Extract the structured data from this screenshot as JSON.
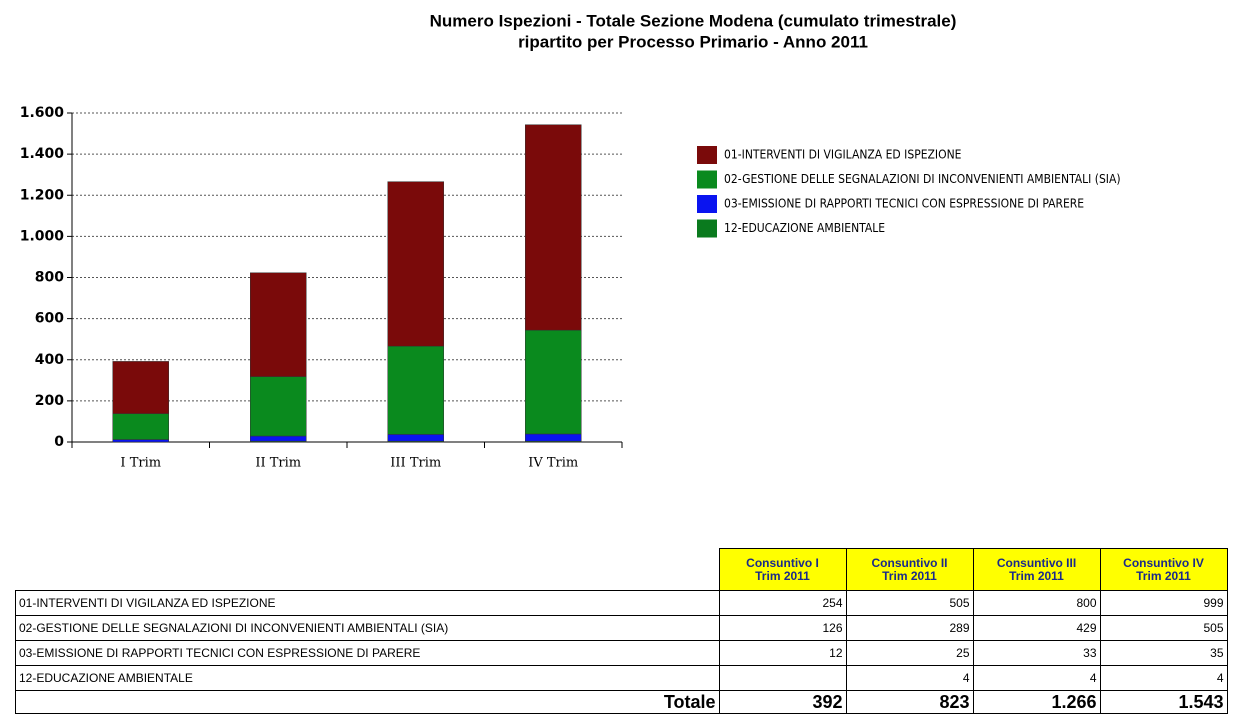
{
  "chart_data": {
    "type": "bar",
    "stacked": true,
    "title": [
      "Numero Ispezioni - Totale Sezione Modena (cumulato trimestrale)",
      "ripartito per Processo Primario - Anno 2011"
    ],
    "categories": [
      "I Trim",
      "II Trim",
      "III Trim",
      "IV Trim"
    ],
    "series": [
      {
        "name": "01-INTERVENTI DI VIGILANZA ED ISPEZIONE",
        "color": "#7a0a0a",
        "values": [
          254,
          505,
          800,
          999
        ]
      },
      {
        "name": "02-GESTIONE DELLE SEGNALAZIONI DI INCONVENIENTI AMBIENTALI (SIA)",
        "color": "#0a8a1e",
        "values": [
          126,
          289,
          429,
          505
        ]
      },
      {
        "name": "03-EMISSIONE DI RAPPORTI TECNICI CON ESPRESSIONE DI PARERE",
        "color": "#0a14f0",
        "values": [
          12,
          25,
          33,
          35
        ]
      },
      {
        "name": "12-EDUCAZIONE AMBIENTALE",
        "color": "#0a7a1e",
        "values": [
          null,
          4,
          4,
          4
        ]
      }
    ],
    "ylim": [
      0,
      1600
    ],
    "yticks": [
      0,
      200,
      400,
      600,
      800,
      {
        "value": 1000,
        "label": "1.000"
      },
      {
        "value": 1200,
        "label": "1.200"
      },
      {
        "value": 1400,
        "label": "1.400"
      },
      {
        "value": 1600,
        "label": "1.600"
      }
    ],
    "grid": true,
    "legend": "right"
  },
  "table": {
    "headers": [
      [
        "Consuntivo I",
        "Trim 2011"
      ],
      [
        "Consuntivo II",
        "Trim 2011"
      ],
      [
        "Consuntivo III",
        "Trim 2011"
      ],
      [
        "Consuntivo IV",
        "Trim 2011"
      ]
    ],
    "total_label": "Totale",
    "totals": [
      "392",
      "823",
      "1.266",
      "1.543"
    ]
  }
}
